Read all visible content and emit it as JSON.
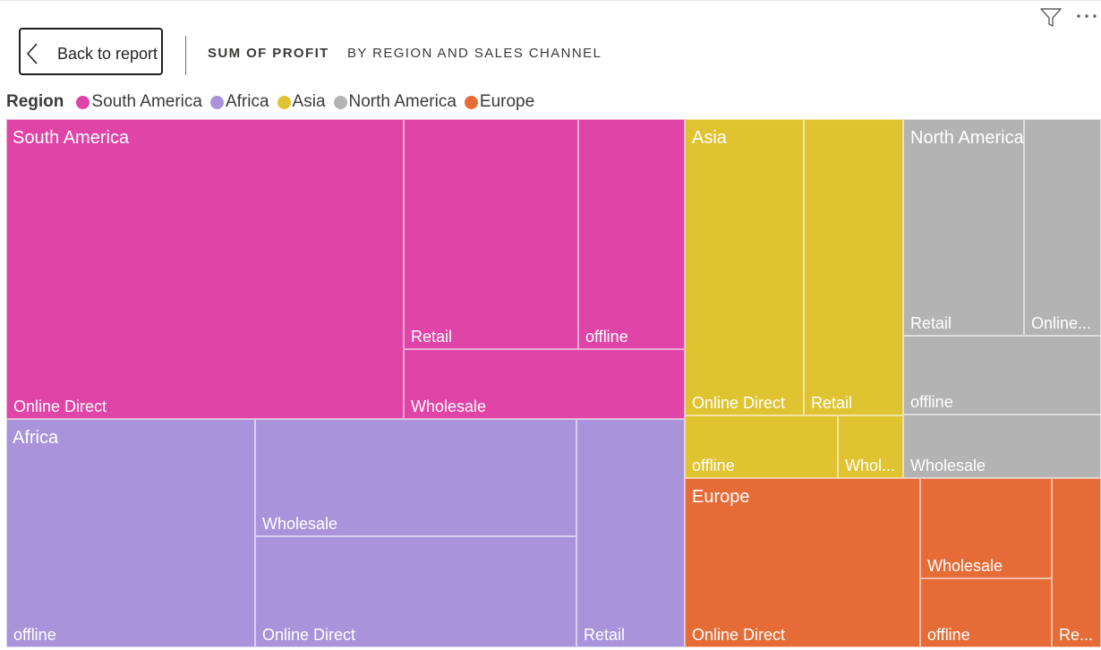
{
  "header": {
    "back_label": "Back to report",
    "title_main": "SUM OF PROFIT",
    "title_sub": "BY REGION AND SALES CHANNEL",
    "icons": [
      "chevron-left-icon",
      "filter-icon",
      "more-options-icon"
    ]
  },
  "legend": {
    "title": "Region",
    "items": [
      {
        "label": "South America",
        "color": "#E044A7"
      },
      {
        "label": "Africa",
        "color": "#A994DC"
      },
      {
        "label": "Asia",
        "color": "#E0C331"
      },
      {
        "label": "North America",
        "color": "#B3B3B3"
      },
      {
        "label": "Europe",
        "color": "#E66C37"
      }
    ]
  },
  "chart_data": {
    "type": "treemap",
    "title": "SUM OF PROFIT BY REGION AND SALES CHANNEL",
    "group_by": "Region",
    "detail_by": "Sales Channel",
    "regions": [
      {
        "name": "South America",
        "color": "#E044A7",
        "channels": [
          {
            "label": "Online Direct"
          },
          {
            "label": "Retail"
          },
          {
            "label": "offline"
          },
          {
            "label": "Wholesale"
          }
        ]
      },
      {
        "name": "Africa",
        "color": "#A994DC",
        "channels": [
          {
            "label": "offline"
          },
          {
            "label": "Wholesale"
          },
          {
            "label": "Online Direct"
          },
          {
            "label": "Retail"
          }
        ]
      },
      {
        "name": "Asia",
        "color": "#E0C331",
        "channels": [
          {
            "label": "Online Direct"
          },
          {
            "label": "Retail"
          },
          {
            "label": "offline"
          },
          {
            "label": "Whol..."
          }
        ]
      },
      {
        "name": "North America",
        "color": "#B3B3B3",
        "channels": [
          {
            "label": "Retail"
          },
          {
            "label": "Online..."
          },
          {
            "label": "offline"
          },
          {
            "label": "Wholesale"
          }
        ]
      },
      {
        "name": "Europe",
        "color": "#E66C37",
        "channels": [
          {
            "label": "Online Direct"
          },
          {
            "label": "Wholesale"
          },
          {
            "label": "offline"
          },
          {
            "label": "Re..."
          }
        ]
      }
    ]
  }
}
